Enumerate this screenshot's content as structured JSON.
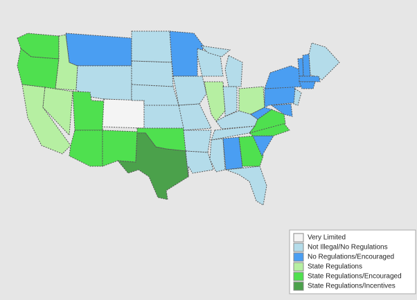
{
  "legend": {
    "items": [
      {
        "label": "Very Limited",
        "color": "#f4f4f4"
      },
      {
        "label": "Not Illegal/No Regulations",
        "color": "#b4dcea"
      },
      {
        "label": "No Regulations/Encouraged",
        "color": "#4a9ef2"
      },
      {
        "label": "State Regulations",
        "color": "#b6efa2"
      },
      {
        "label": "State Regulations/Encouraged",
        "color": "#4fe04f"
      },
      {
        "label": "State Regulations/Incentives",
        "color": "#4ba14b"
      }
    ]
  }
}
